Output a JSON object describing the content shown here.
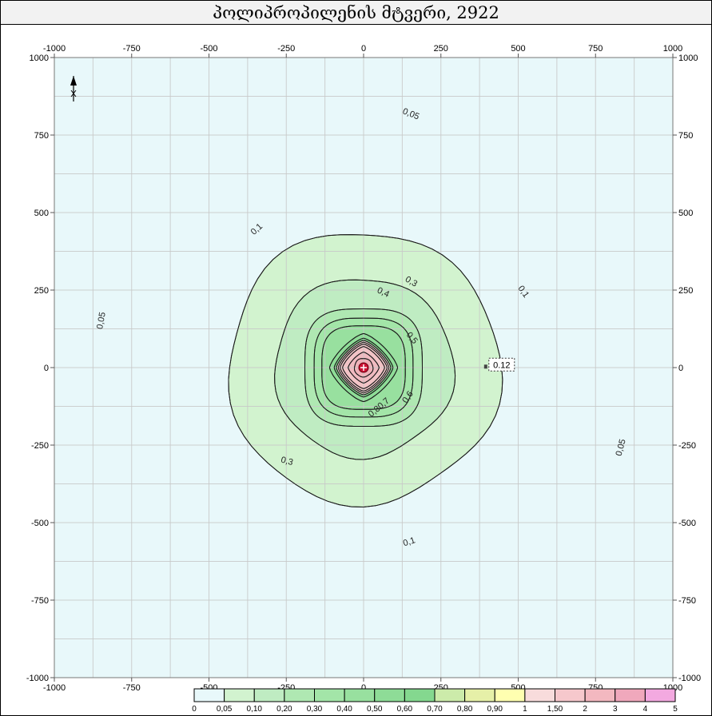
{
  "title": "პოლიპროპილენის მტვერი, 2922",
  "colors": {
    "background": "#e8f8fa",
    "grid": "#c8c8c8",
    "contour_line": "#1a1a1a",
    "source_marker": "#cc1133"
  },
  "chart_data": {
    "type": "contour",
    "title": "პოლიპროპილენის მტვერი, 2922",
    "x_range": [
      -1000,
      1000
    ],
    "y_range": [
      -1000,
      1000
    ],
    "x_ticks": [
      -1000,
      -750,
      -500,
      -250,
      0,
      250,
      500,
      750,
      1000
    ],
    "y_ticks": [
      1000,
      750,
      500,
      250,
      0,
      -250,
      -500,
      -750,
      -1000
    ],
    "x_tick_labels": [
      "-1000",
      "-750",
      "-500",
      "-250",
      "0",
      "250",
      "500",
      "750",
      "1000"
    ],
    "y_tick_labels": [
      "1000",
      "750",
      "500",
      "250",
      "0",
      "-250",
      "-500",
      "-750",
      "-1000"
    ],
    "grid": true,
    "grid_step": 125,
    "source_location": [
      0,
      0
    ],
    "contours": [
      {
        "level": 0.05,
        "shape": "circle",
        "radius": 440,
        "fill": "#d2f3cf"
      },
      {
        "level": 0.1,
        "shape": "circle",
        "radius": 290,
        "fill": "#bfecc2"
      },
      {
        "level": 0.2,
        "shape": "square",
        "radius": 190,
        "fill": "#afe8b2"
      },
      {
        "level": 0.3,
        "shape": "square",
        "radius": 160,
        "fill": "#a3e5a8"
      },
      {
        "level": 0.4,
        "shape": "square",
        "radius": 135,
        "fill": "#98e09f"
      },
      {
        "level": 0.5,
        "shape": "diamond",
        "radius": 110,
        "fill": "#8edc97"
      },
      {
        "level": 0.6,
        "shape": "diamond",
        "radius": 95,
        "fill": "#84d88f"
      },
      {
        "level": 0.7,
        "shape": "diamond",
        "radius": 88,
        "fill": "#e5d7cd"
      },
      {
        "level": 0.8,
        "shape": "diamond",
        "radius": 82,
        "fill": "#efd0d0"
      },
      {
        "level": 0.9,
        "shape": "diamond",
        "radius": 76,
        "fill": "#f3c9cb"
      },
      {
        "level": 1,
        "shape": "diamond",
        "radius": 68,
        "fill": "#f2c3c6"
      },
      {
        "level": 1.5,
        "shape": "diamond",
        "radius": 50,
        "fill": "#f0bac0"
      },
      {
        "level": 2,
        "shape": "circle",
        "radius": 30,
        "fill": "#efb2b9"
      },
      {
        "level": 3,
        "shape": "circle",
        "radius": 12,
        "fill": "#eaa5b0"
      }
    ],
    "contour_labels": [
      {
        "text": "0,05",
        "x": 150,
        "y": 810,
        "angle": 22
      },
      {
        "text": "0,05",
        "x": -840,
        "y": 150,
        "angle": -80
      },
      {
        "text": "0,05",
        "x": 840,
        "y": -260,
        "angle": -75
      },
      {
        "text": "0,1",
        "x": -340,
        "y": 440,
        "angle": -42
      },
      {
        "text": "0,1",
        "x": 510,
        "y": 240,
        "angle": 55
      },
      {
        "text": "0,1",
        "x": 150,
        "y": -570,
        "angle": -18
      },
      {
        "text": "0,3",
        "x": 150,
        "y": 270,
        "angle": 30
      },
      {
        "text": "0,3",
        "x": -250,
        "y": -310,
        "angle": 15
      },
      {
        "text": "0,4",
        "x": 60,
        "y": 235,
        "angle": 25
      },
      {
        "text": "0,5",
        "x": 150,
        "y": 90,
        "angle": 50
      },
      {
        "text": "0,6",
        "x": 150,
        "y": -100,
        "angle": -55
      },
      {
        "text": "0,80,7",
        "x": 55,
        "y": -135,
        "angle": -40
      }
    ],
    "point_label": {
      "text": "0.12",
      "x": 400,
      "y": 25
    },
    "legend": {
      "placement": "bottom",
      "labels": [
        "0",
        "0,05",
        "0,10",
        "0,20",
        "0,30",
        "0,40",
        "0,50",
        "0,60",
        "0,70",
        "0,80",
        "0,90",
        "1",
        "1,50",
        "2",
        "3",
        "4",
        "5"
      ],
      "colors": [
        "#e8f8fa",
        "#d2f3cf",
        "#bfecc2",
        "#afe8b2",
        "#a3e5a8",
        "#98e09f",
        "#8edc97",
        "#84d88f",
        "#ccebaa",
        "#e6f0a8",
        "#ffffb0",
        "#f8dcdc",
        "#f6c8cc",
        "#f3b8c0",
        "#f0a8bc",
        "#f3a9e0"
      ]
    }
  }
}
